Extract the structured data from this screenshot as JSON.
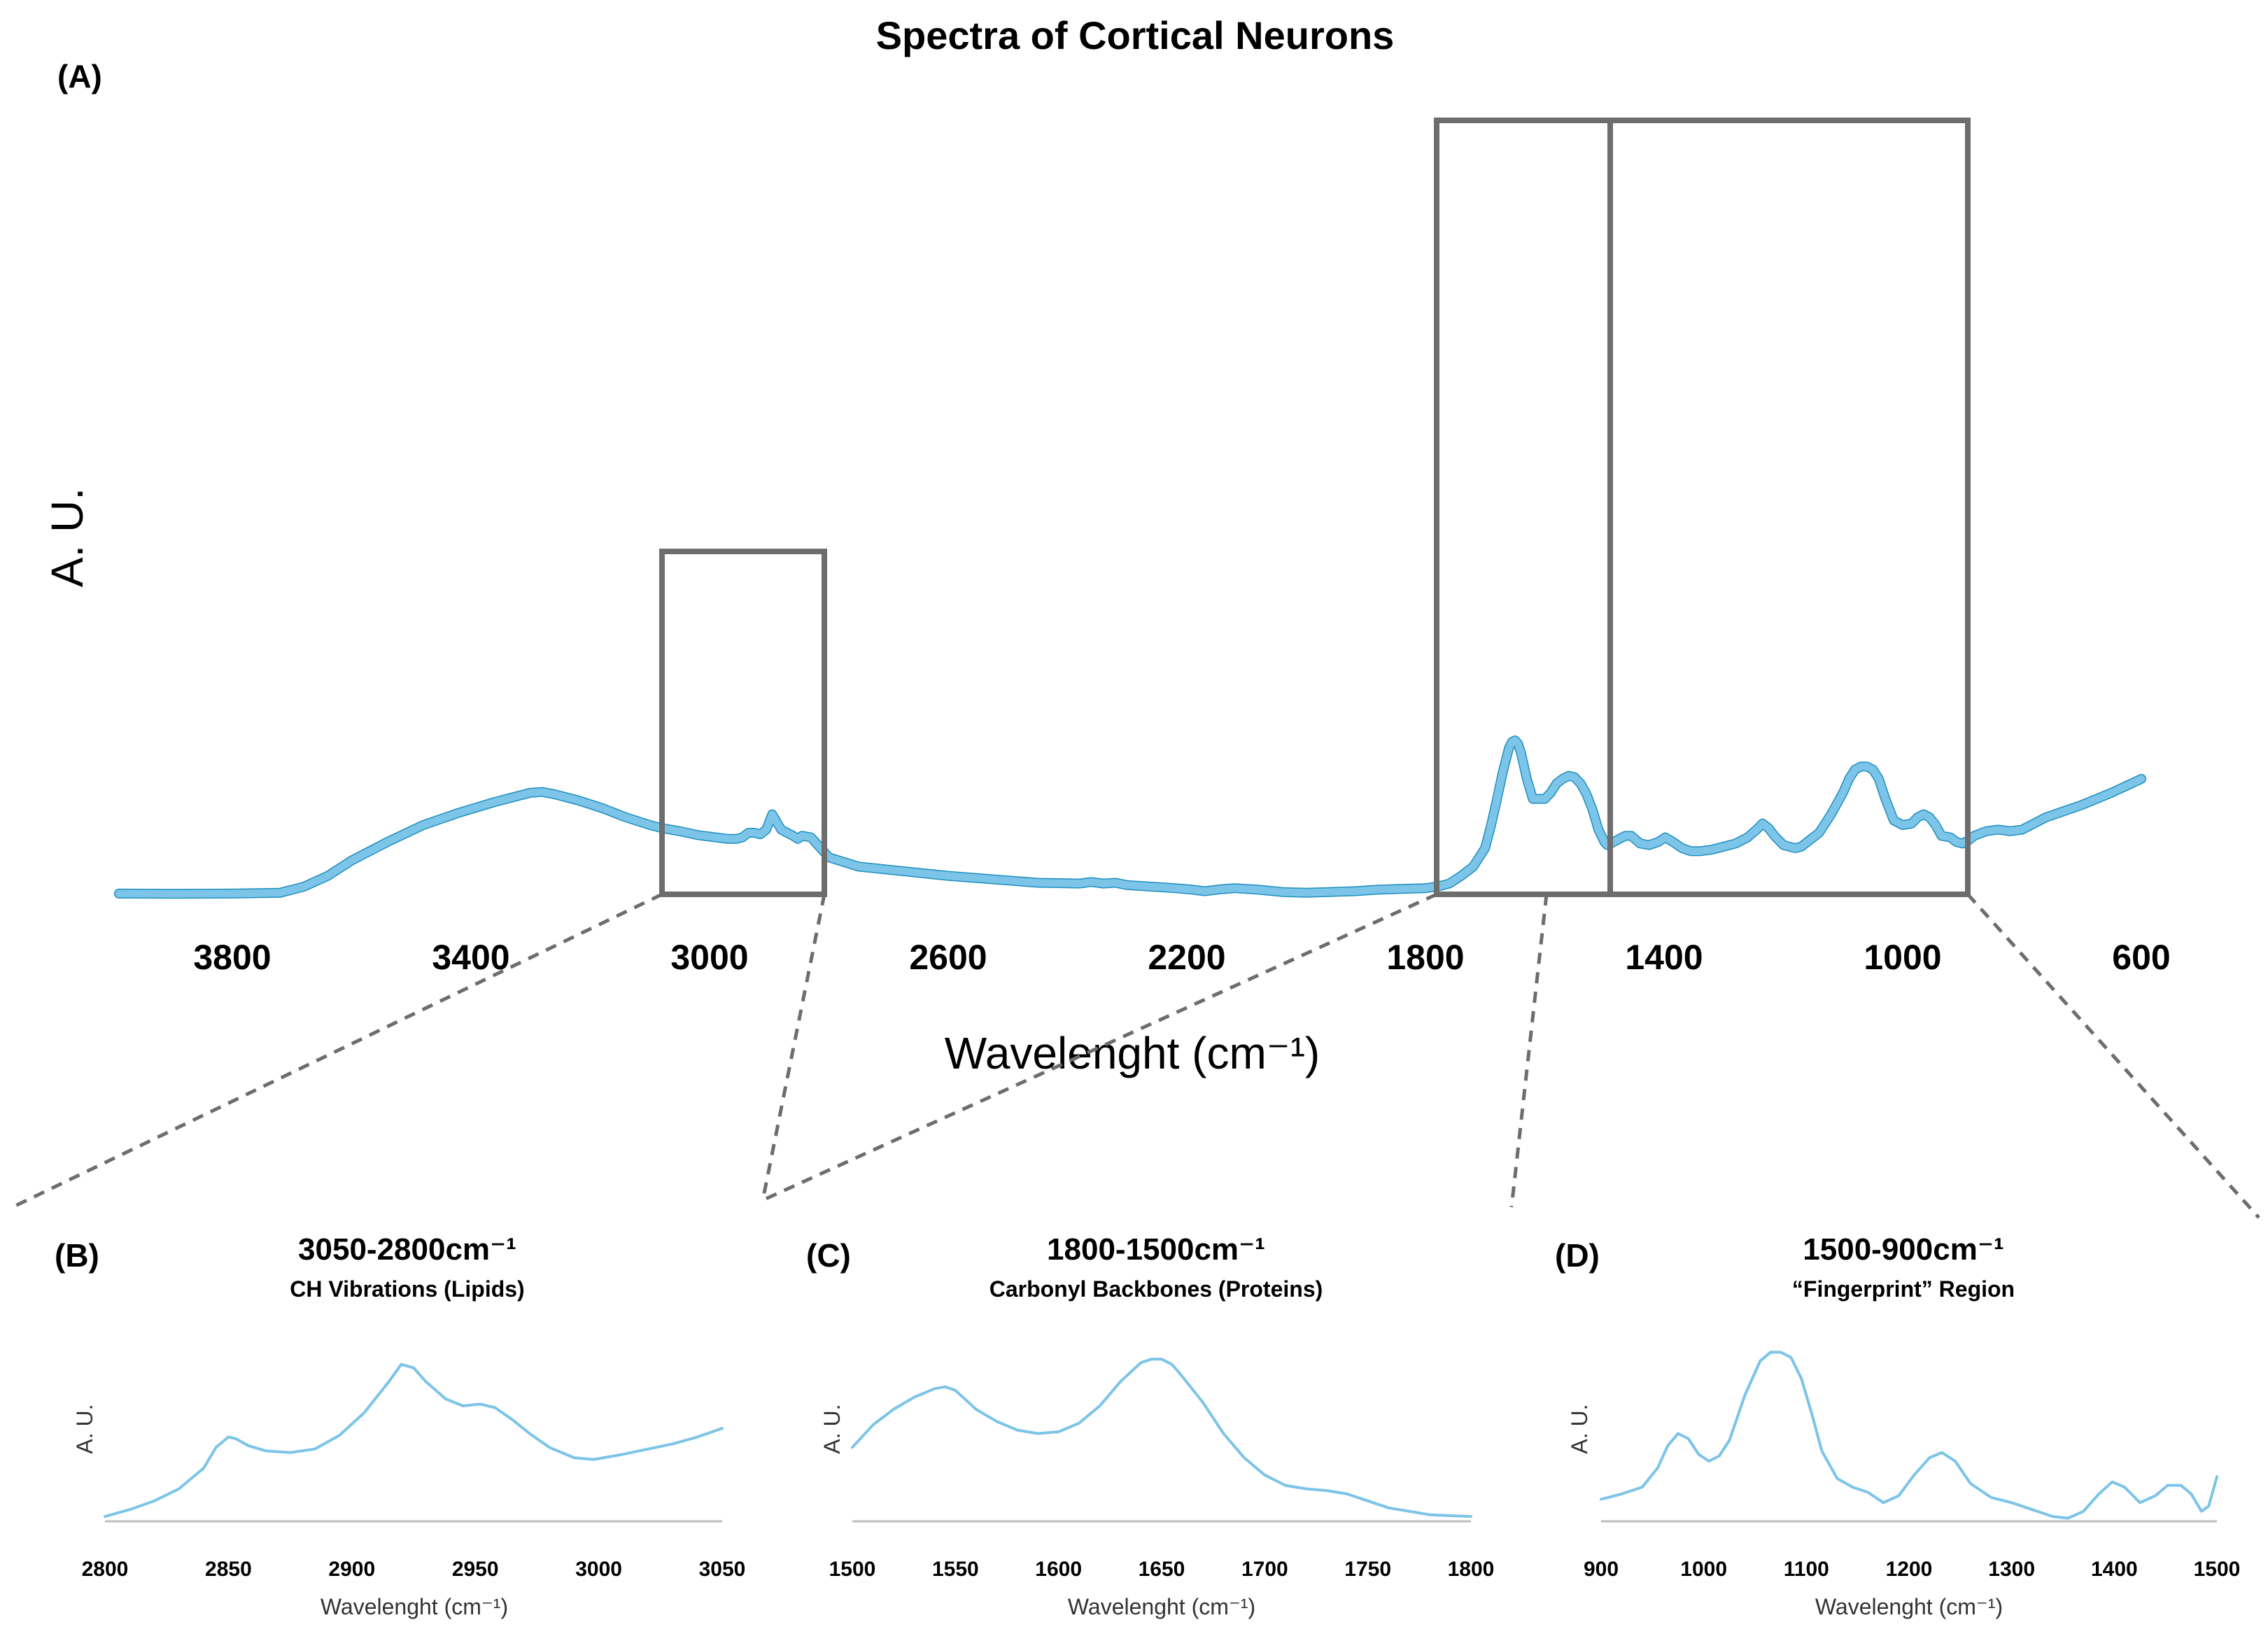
{
  "chart_data": [
    {
      "panel": "(A)",
      "type": "line",
      "title": "Spectra of Cortical Neurons",
      "xlabel": "Wavelenght (cm⁻¹)",
      "ylabel": "A. U.",
      "xlim": [
        3990,
        600
      ],
      "ylim": [
        0,
        1
      ],
      "x_reversed": true,
      "grid": false,
      "color": "#7cc4e8",
      "edge_color": "#1f8fbf",
      "xticks": [
        {
          "value": 3800,
          "label": "3800"
        },
        {
          "value": 3400,
          "label": "3400"
        },
        {
          "value": 3000,
          "label": "3000"
        },
        {
          "value": 2600,
          "label": "2600"
        },
        {
          "value": 2200,
          "label": "2200"
        },
        {
          "value": 1800,
          "label": "1800"
        },
        {
          "value": 1400,
          "label": "1400"
        },
        {
          "value": 1000,
          "label": "1000"
        },
        {
          "value": 600,
          "label": "600"
        }
      ],
      "series": [
        {
          "name": "Cortical Neurons",
          "x": [
            3990,
            3900,
            3800,
            3720,
            3680,
            3640,
            3600,
            3540,
            3480,
            3420,
            3360,
            3320,
            3300,
            3280,
            3260,
            3220,
            3180,
            3140,
            3100,
            3080,
            3050,
            3020,
            2990,
            2970,
            2955,
            2945,
            2935,
            2925,
            2915,
            2905,
            2895,
            2880,
            2870,
            2860,
            2852,
            2845,
            2830,
            2800,
            2750,
            2700,
            2600,
            2500,
            2450,
            2380,
            2360,
            2340,
            2320,
            2300,
            2260,
            2220,
            2190,
            2170,
            2150,
            2120,
            2080,
            2040,
            2000,
            1960,
            1920,
            1880,
            1840,
            1800,
            1780,
            1760,
            1740,
            1720,
            1700,
            1690,
            1680,
            1670,
            1660,
            1655,
            1650,
            1645,
            1640,
            1630,
            1620,
            1600,
            1590,
            1580,
            1570,
            1560,
            1550,
            1540,
            1530,
            1520,
            1510,
            1500,
            1495,
            1480,
            1465,
            1455,
            1440,
            1425,
            1410,
            1398,
            1385,
            1370,
            1355,
            1340,
            1320,
            1300,
            1280,
            1260,
            1245,
            1235,
            1225,
            1215,
            1200,
            1180,
            1170,
            1160,
            1140,
            1120,
            1100,
            1090,
            1080,
            1070,
            1060,
            1050,
            1040,
            1030,
            1015,
            1000,
            985,
            975,
            965,
            955,
            945,
            935,
            920,
            910,
            900,
            890,
            880,
            860,
            840,
            820,
            800,
            760,
            700,
            650,
            600
          ],
          "y": [
            0.005,
            0.003,
            0.005,
            0.01,
            0.05,
            0.12,
            0.22,
            0.34,
            0.45,
            0.53,
            0.6,
            0.64,
            0.66,
            0.665,
            0.65,
            0.61,
            0.56,
            0.5,
            0.45,
            0.43,
            0.41,
            0.385,
            0.37,
            0.36,
            0.36,
            0.37,
            0.4,
            0.4,
            0.39,
            0.42,
            0.52,
            0.42,
            0.4,
            0.38,
            0.36,
            0.38,
            0.37,
            0.24,
            0.18,
            0.16,
            0.12,
            0.09,
            0.075,
            0.07,
            0.08,
            0.07,
            0.075,
            0.06,
            0.05,
            0.04,
            0.03,
            0.02,
            0.03,
            0.04,
            0.03,
            0.015,
            0.01,
            0.015,
            0.02,
            0.03,
            0.035,
            0.04,
            0.05,
            0.07,
            0.12,
            0.18,
            0.3,
            0.45,
            0.62,
            0.8,
            0.95,
            0.99,
            1.0,
            0.98,
            0.92,
            0.75,
            0.62,
            0.62,
            0.66,
            0.72,
            0.75,
            0.77,
            0.76,
            0.72,
            0.65,
            0.55,
            0.42,
            0.34,
            0.32,
            0.35,
            0.38,
            0.38,
            0.33,
            0.32,
            0.34,
            0.37,
            0.34,
            0.3,
            0.28,
            0.28,
            0.29,
            0.31,
            0.33,
            0.37,
            0.42,
            0.46,
            0.43,
            0.38,
            0.32,
            0.3,
            0.31,
            0.34,
            0.4,
            0.52,
            0.66,
            0.75,
            0.81,
            0.83,
            0.83,
            0.81,
            0.75,
            0.63,
            0.48,
            0.45,
            0.46,
            0.5,
            0.52,
            0.5,
            0.45,
            0.38,
            0.37,
            0.34,
            0.33,
            0.35,
            0.38,
            0.41,
            0.42,
            0.41,
            0.42,
            0.5,
            0.58,
            0.66,
            0.75
          ]
        }
      ]
    },
    {
      "panel": "(B)",
      "type": "line",
      "title": "3050-2800cm⁻¹",
      "subtitle": "CH Vibrations (Lipids)",
      "xlabel": "Wavelenght (cm⁻¹)",
      "ylabel": "A. U.",
      "xlim": [
        2800,
        3050
      ],
      "ylim": [
        0,
        1
      ],
      "color": "#7cc4e8",
      "xticks": [
        {
          "value": 2800,
          "label": "2800"
        },
        {
          "value": 2850,
          "label": "2850"
        },
        {
          "value": 2900,
          "label": "2900"
        },
        {
          "value": 2950,
          "label": "2950"
        },
        {
          "value": 3000,
          "label": "3000"
        },
        {
          "value": 3050,
          "label": "3050"
        }
      ],
      "series": [
        {
          "name": "CH Vibrations",
          "x": [
            2800,
            2810,
            2820,
            2830,
            2840,
            2845,
            2850,
            2853,
            2858,
            2865,
            2875,
            2885,
            2895,
            2905,
            2915,
            2920,
            2925,
            2930,
            2938,
            2945,
            2952,
            2958,
            2965,
            2972,
            2980,
            2990,
            2998,
            3010,
            3020,
            3030,
            3040,
            3050
          ],
          "y": [
            0.02,
            0.06,
            0.11,
            0.18,
            0.3,
            0.42,
            0.48,
            0.47,
            0.43,
            0.4,
            0.39,
            0.41,
            0.49,
            0.62,
            0.8,
            0.9,
            0.88,
            0.8,
            0.7,
            0.66,
            0.67,
            0.65,
            0.58,
            0.5,
            0.42,
            0.36,
            0.35,
            0.38,
            0.41,
            0.44,
            0.48,
            0.53
          ]
        }
      ]
    },
    {
      "panel": "(C)",
      "type": "line",
      "title": "1800-1500cm⁻¹",
      "subtitle": "Carbonyl Backbones (Proteins)",
      "xlabel": "Wavelenght (cm⁻¹)",
      "ylabel": "A. U.",
      "xlim": [
        1500,
        1800
      ],
      "ylim": [
        0,
        1
      ],
      "color": "#7cc4e8",
      "xticks": [
        {
          "value": 1500,
          "label": "1500"
        },
        {
          "value": 1550,
          "label": "1550"
        },
        {
          "value": 1600,
          "label": "1600"
        },
        {
          "value": 1650,
          "label": "1650"
        },
        {
          "value": 1700,
          "label": "1700"
        },
        {
          "value": 1750,
          "label": "1750"
        },
        {
          "value": 1800,
          "label": "1800"
        }
      ],
      "series": [
        {
          "name": "Carbonyl Backbones",
          "x": [
            1500,
            1510,
            1520,
            1530,
            1540,
            1545,
            1550,
            1560,
            1570,
            1580,
            1590,
            1600,
            1610,
            1620,
            1630,
            1640,
            1645,
            1650,
            1655,
            1660,
            1670,
            1680,
            1690,
            1700,
            1710,
            1720,
            1730,
            1740,
            1750,
            1760,
            1780,
            1800
          ],
          "y": [
            0.42,
            0.55,
            0.64,
            0.71,
            0.76,
            0.77,
            0.75,
            0.64,
            0.57,
            0.52,
            0.5,
            0.51,
            0.56,
            0.66,
            0.8,
            0.91,
            0.93,
            0.93,
            0.9,
            0.83,
            0.68,
            0.5,
            0.36,
            0.26,
            0.2,
            0.18,
            0.17,
            0.15,
            0.11,
            0.07,
            0.03,
            0.02
          ]
        }
      ]
    },
    {
      "panel": "(D)",
      "type": "line",
      "title": "1500-900cm⁻¹",
      "subtitle": "“Fingerprint” Region",
      "xlabel": "Wavelenght (cm⁻¹)",
      "ylabel": "A. U.",
      "xlim": [
        900,
        1500
      ],
      "ylim": [
        0,
        1
      ],
      "color": "#7cc4e8",
      "xticks": [
        {
          "value": 900,
          "label": "900"
        },
        {
          "value": 1000,
          "label": "1000"
        },
        {
          "value": 1100,
          "label": "1100"
        },
        {
          "value": 1200,
          "label": "1200"
        },
        {
          "value": 1300,
          "label": "1300"
        },
        {
          "value": 1400,
          "label": "1400"
        },
        {
          "value": 1500,
          "label": "1500"
        }
      ],
      "series": [
        {
          "name": "Fingerprint",
          "x": [
            900,
            920,
            940,
            955,
            965,
            975,
            985,
            995,
            1005,
            1015,
            1025,
            1040,
            1055,
            1065,
            1075,
            1085,
            1095,
            1105,
            1115,
            1130,
            1145,
            1160,
            1175,
            1190,
            1205,
            1220,
            1232,
            1245,
            1260,
            1280,
            1300,
            1320,
            1340,
            1355,
            1370,
            1385,
            1398,
            1410,
            1425,
            1440,
            1452,
            1465,
            1475,
            1485,
            1492,
            1500
          ],
          "y": [
            0.12,
            0.15,
            0.19,
            0.3,
            0.43,
            0.5,
            0.47,
            0.38,
            0.34,
            0.37,
            0.46,
            0.72,
            0.92,
            0.97,
            0.97,
            0.94,
            0.82,
            0.62,
            0.4,
            0.24,
            0.19,
            0.16,
            0.1,
            0.14,
            0.26,
            0.36,
            0.39,
            0.34,
            0.21,
            0.13,
            0.1,
            0.06,
            0.02,
            0.01,
            0.05,
            0.15,
            0.22,
            0.19,
            0.1,
            0.14,
            0.2,
            0.2,
            0.15,
            0.05,
            0.08,
            0.25
          ]
        }
      ]
    }
  ],
  "figure": {
    "main_title": "Spectra of Cortical Neurons",
    "box_color": "#6d6d6d",
    "connector_color": "#6d6d6d"
  }
}
